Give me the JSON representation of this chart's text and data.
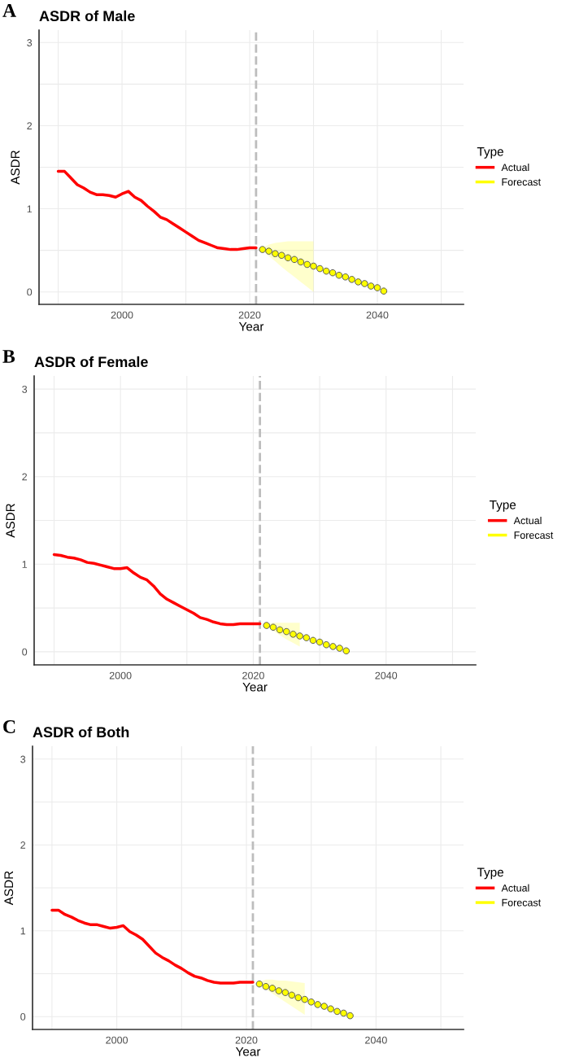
{
  "chart_data": [
    {
      "type": "line",
      "title": "ASDR of Male",
      "annotations": [
        "A"
      ],
      "xlabel": "Year",
      "ylabel": "ASDR",
      "legend_title": "Type",
      "legend": "right",
      "grid": true,
      "xlim": [
        1987,
        2053.5
      ],
      "xticks": [
        {
          "value": 1990,
          "label": null
        },
        2000,
        {
          "value": 2010,
          "label": null
        },
        2020,
        {
          "value": 2030,
          "label": null
        },
        2040,
        {
          "value": 2050,
          "label": null
        }
      ],
      "ylim": [
        -0.15,
        3.15
      ],
      "yticks": [
        0,
        {
          "value": 0.5,
          "label": null
        },
        1,
        {
          "value": 1.5,
          "label": null
        },
        2,
        {
          "value": 2.5,
          "label": null
        },
        3
      ],
      "ref_lines": [
        {
          "axis": "x",
          "value": 2021,
          "label": null,
          "color": "#bdbdbd",
          "line_style": "dashed"
        }
      ],
      "series": [
        {
          "name": "Actual",
          "color": "#ff0000",
          "line_style": "solid",
          "x": [
            1990,
            1991,
            1992,
            1993,
            1994,
            1995,
            1996,
            1997,
            1998,
            1999,
            2000,
            2001,
            2002,
            2003,
            2004,
            2005,
            2006,
            2007,
            2008,
            2009,
            2010,
            2011,
            2012,
            2013,
            2014,
            2015,
            2016,
            2017,
            2018,
            2019,
            2020,
            2021
          ],
          "values": [
            1.45,
            1.45,
            1.37,
            1.29,
            1.25,
            1.2,
            1.17,
            1.17,
            1.16,
            1.14,
            1.18,
            1.21,
            1.14,
            1.1,
            1.03,
            0.97,
            0.9,
            0.87,
            0.82,
            0.77,
            0.72,
            0.67,
            0.62,
            0.59,
            0.56,
            0.53,
            0.52,
            0.51,
            0.51,
            0.52,
            0.53,
            0.53
          ]
        },
        {
          "name": "Forecast",
          "type": "scatter",
          "color": "#ffff00",
          "marker": "circle",
          "x": [
            2022,
            2023,
            2024,
            2025,
            2026,
            2027,
            2028,
            2029,
            2030,
            2031,
            2032,
            2033,
            2034,
            2035,
            2036,
            2037,
            2038,
            2039,
            2040,
            2041
          ],
          "values": [
            0.51,
            0.49,
            0.46,
            0.44,
            0.41,
            0.39,
            0.36,
            0.33,
            0.31,
            0.28,
            0.25,
            0.23,
            0.2,
            0.18,
            0.15,
            0.12,
            0.1,
            0.07,
            0.05,
            0.01
          ],
          "lower": [
            0.5,
            0.43,
            0.37,
            0.3,
            0.24,
            0.18,
            0.12,
            0.06,
            0.0,
            null,
            null,
            null,
            null,
            null,
            null,
            null,
            null,
            null,
            null,
            null
          ],
          "upper": [
            0.53,
            0.57,
            0.59,
            0.6,
            0.61,
            0.61,
            0.61,
            0.61,
            0.61,
            null,
            null,
            null,
            null,
            null,
            null,
            null,
            null,
            null,
            null,
            null
          ]
        }
      ]
    },
    {
      "type": "line",
      "title": "ASDR of Female",
      "annotations": [
        "B"
      ],
      "xlabel": "Year",
      "ylabel": "ASDR",
      "legend_title": "Type",
      "legend": "right",
      "grid": true,
      "xlim": [
        1987,
        2053.5
      ],
      "xticks": [
        {
          "value": 1990,
          "label": null
        },
        2000,
        {
          "value": 2010,
          "label": null
        },
        2020,
        {
          "value": 2030,
          "label": null
        },
        2040,
        {
          "value": 2050,
          "label": null
        }
      ],
      "ylim": [
        -0.15,
        3.15
      ],
      "yticks": [
        0,
        {
          "value": 0.5,
          "label": null
        },
        1,
        {
          "value": 1.5,
          "label": null
        },
        2,
        {
          "value": 2.5,
          "label": null
        },
        3
      ],
      "ref_lines": [
        {
          "axis": "x",
          "value": 2021,
          "label": null,
          "color": "#bdbdbd",
          "line_style": "dashed"
        }
      ],
      "series": [
        {
          "name": "Actual",
          "color": "#ff0000",
          "line_style": "solid",
          "x": [
            1990,
            1991,
            1992,
            1993,
            1994,
            1995,
            1996,
            1997,
            1998,
            1999,
            2000,
            2001,
            2002,
            2003,
            2004,
            2005,
            2006,
            2007,
            2008,
            2009,
            2010,
            2011,
            2012,
            2013,
            2014,
            2015,
            2016,
            2017,
            2018,
            2019,
            2020,
            2021
          ],
          "values": [
            1.11,
            1.1,
            1.08,
            1.07,
            1.05,
            1.02,
            1.01,
            0.99,
            0.97,
            0.95,
            0.95,
            0.96,
            0.9,
            0.85,
            0.82,
            0.75,
            0.66,
            0.6,
            0.56,
            0.52,
            0.48,
            0.44,
            0.39,
            0.37,
            0.34,
            0.32,
            0.31,
            0.31,
            0.32,
            0.32,
            0.32,
            0.32
          ]
        },
        {
          "name": "Forecast",
          "type": "scatter",
          "color": "#ffff00",
          "marker": "circle",
          "x": [
            2022,
            2023,
            2024,
            2025,
            2026,
            2027,
            2028,
            2029,
            2030,
            2031,
            2032,
            2033,
            2034
          ],
          "values": [
            0.3,
            0.28,
            0.25,
            0.23,
            0.2,
            0.18,
            0.16,
            0.13,
            0.11,
            0.08,
            0.06,
            0.04,
            0.01
          ],
          "lower": [
            0.29,
            0.24,
            0.19,
            0.14,
            0.1,
            0.06,
            null,
            null,
            null,
            null,
            null,
            null,
            null
          ],
          "upper": [
            0.31,
            0.33,
            0.33,
            0.33,
            0.33,
            0.33,
            null,
            null,
            null,
            null,
            null,
            null,
            null
          ]
        }
      ]
    },
    {
      "type": "line",
      "title": "ASDR of Both",
      "annotations": [
        "C"
      ],
      "xlabel": "Year",
      "ylabel": "ASDR",
      "legend_title": "Type",
      "legend": "right",
      "grid": true,
      "xlim": [
        1987,
        2053.5
      ],
      "xticks": [
        {
          "value": 1990,
          "label": null
        },
        2000,
        {
          "value": 2010,
          "label": null
        },
        2020,
        {
          "value": 2030,
          "label": null
        },
        2040,
        {
          "value": 2050,
          "label": null
        }
      ],
      "ylim": [
        -0.15,
        3.15
      ],
      "yticks": [
        0,
        {
          "value": 0.5,
          "label": null
        },
        1,
        {
          "value": 1.5,
          "label": null
        },
        2,
        {
          "value": 2.5,
          "label": null
        },
        3
      ],
      "ref_lines": [
        {
          "axis": "x",
          "value": 2021,
          "label": null,
          "color": "#bdbdbd",
          "line_style": "dashed"
        }
      ],
      "series": [
        {
          "name": "Actual",
          "color": "#ff0000",
          "line_style": "solid",
          "x": [
            1990,
            1991,
            1992,
            1993,
            1994,
            1995,
            1996,
            1997,
            1998,
            1999,
            2000,
            2001,
            2002,
            2003,
            2004,
            2005,
            2006,
            2007,
            2008,
            2009,
            2010,
            2011,
            2012,
            2013,
            2014,
            2015,
            2016,
            2017,
            2018,
            2019,
            2020,
            2021
          ],
          "values": [
            1.24,
            1.24,
            1.19,
            1.16,
            1.12,
            1.09,
            1.07,
            1.07,
            1.05,
            1.03,
            1.04,
            1.06,
            0.99,
            0.95,
            0.9,
            0.82,
            0.74,
            0.69,
            0.65,
            0.6,
            0.56,
            0.51,
            0.47,
            0.45,
            0.42,
            0.4,
            0.39,
            0.39,
            0.39,
            0.4,
            0.4,
            0.4
          ]
        },
        {
          "name": "Forecast",
          "type": "scatter",
          "color": "#ffff00",
          "marker": "circle",
          "x": [
            2022,
            2023,
            2024,
            2025,
            2026,
            2027,
            2028,
            2029,
            2030,
            2031,
            2032,
            2033,
            2034,
            2035,
            2036
          ],
          "values": [
            0.38,
            0.35,
            0.33,
            0.3,
            0.28,
            0.25,
            0.22,
            0.2,
            0.17,
            0.14,
            0.12,
            0.09,
            0.06,
            0.04,
            0.01
          ],
          "lower": [
            0.37,
            0.32,
            0.27,
            0.22,
            0.17,
            0.12,
            0.07,
            0.02,
            null,
            null,
            null,
            null,
            null,
            null,
            null
          ],
          "upper": [
            0.4,
            0.43,
            0.43,
            0.42,
            0.42,
            0.41,
            0.4,
            0.39,
            null,
            null,
            null,
            null,
            null,
            null,
            null
          ]
        }
      ]
    }
  ]
}
